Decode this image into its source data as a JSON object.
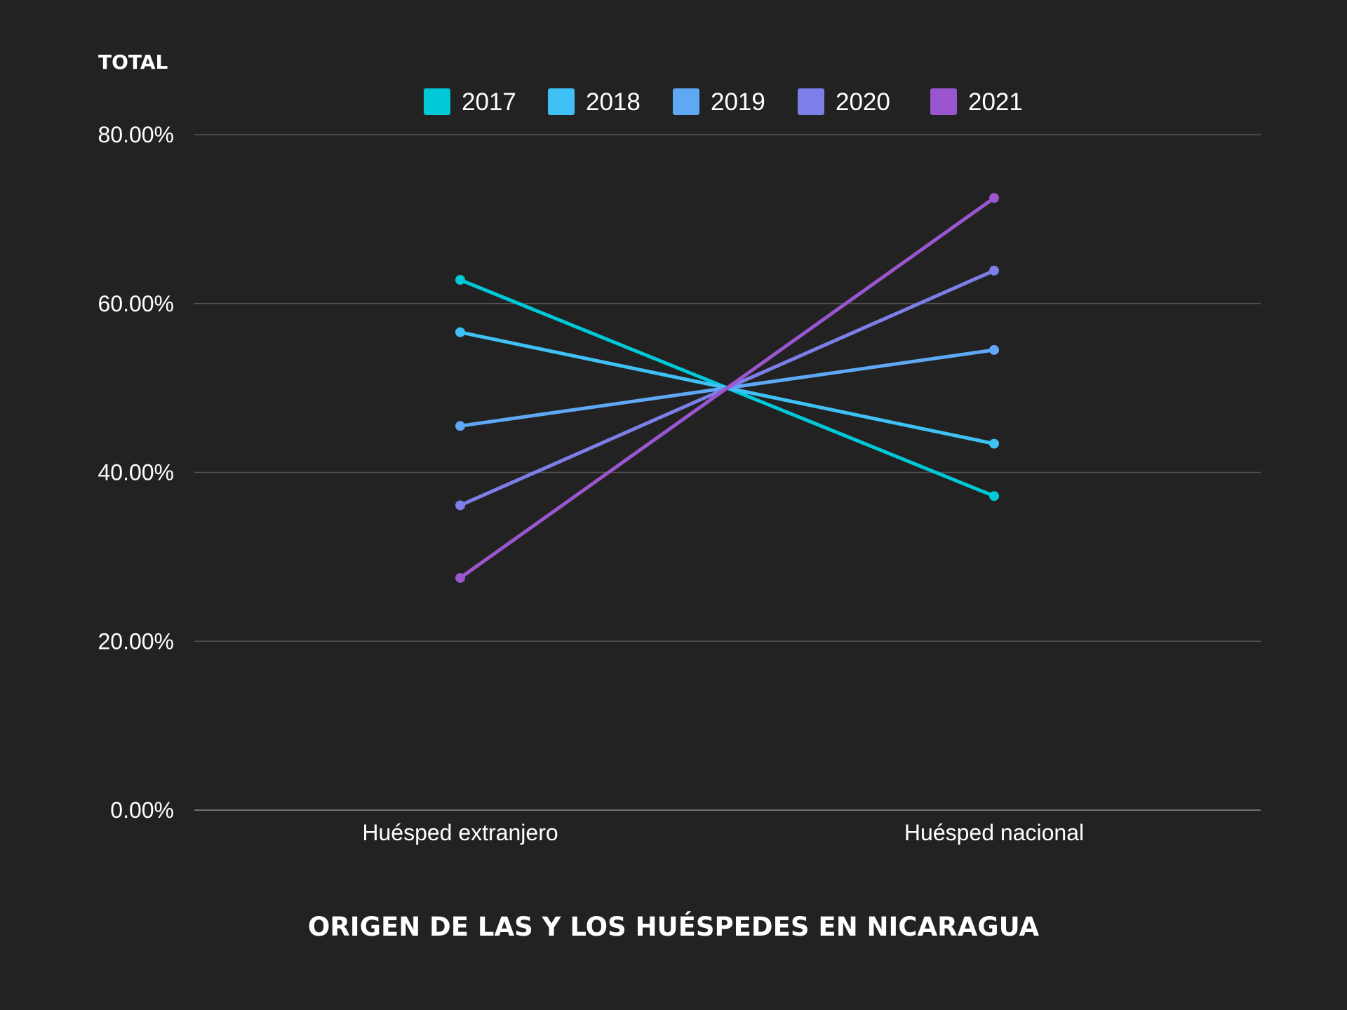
{
  "chart_data": {
    "type": "line",
    "ylabel": "TOTAL",
    "xlabel": "ORIGEN DE LAS Y LOS HUÉSPEDES EN NICARAGUA",
    "categories": [
      "Huésped extranjero",
      "Huésped nacional"
    ],
    "ylim": [
      0,
      80
    ],
    "yticks": [
      0,
      20,
      40,
      60,
      80
    ],
    "ytick_labels": [
      "0.00%",
      "20.00%",
      "40.00%",
      "60.00%",
      "80.00%"
    ],
    "grid": true,
    "legend_position": "top",
    "series": [
      {
        "name": "2017",
        "color": "#00c8d7",
        "values": [
          62.8,
          37.2
        ]
      },
      {
        "name": "2018",
        "color": "#3fc1f5",
        "values": [
          56.6,
          43.4
        ]
      },
      {
        "name": "2019",
        "color": "#5ea8f5",
        "values": [
          45.5,
          54.5
        ]
      },
      {
        "name": "2020",
        "color": "#7d7ee8",
        "values": [
          36.1,
          63.9
        ]
      },
      {
        "name": "2021",
        "color": "#9a56cf",
        "values": [
          27.5,
          72.5
        ]
      }
    ]
  }
}
